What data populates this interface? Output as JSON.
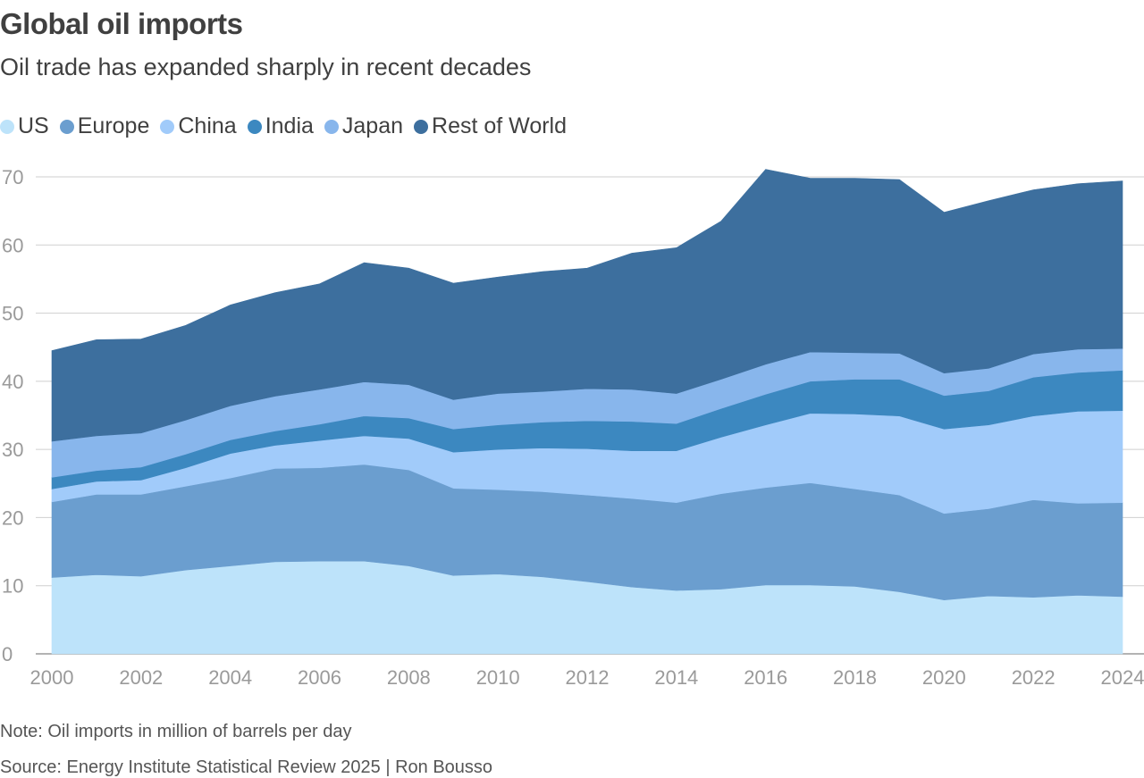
{
  "header": {
    "title": "Global oil imports",
    "subtitle": "Oil trade has expanded sharply in recent decades"
  },
  "footer": {
    "note": "Note: Oil imports in million of barrels per day",
    "source": "Source: Energy Institute Statistical Review 2025 | Ron Bousso"
  },
  "chart_data": {
    "type": "area",
    "stacked": true,
    "title": "Global oil imports",
    "subtitle": "Oil trade has expanded sharply in recent decades",
    "xlabel": "",
    "ylabel": "",
    "x": [
      2000,
      2001,
      2002,
      2003,
      2004,
      2005,
      2006,
      2007,
      2008,
      2009,
      2010,
      2011,
      2012,
      2013,
      2014,
      2015,
      2016,
      2017,
      2018,
      2019,
      2020,
      2021,
      2022,
      2023,
      2024
    ],
    "xticks": [
      "2000",
      "2002",
      "2004",
      "2006",
      "2008",
      "2010",
      "2012",
      "2014",
      "2016",
      "2018",
      "2020",
      "2022",
      "2024"
    ],
    "yticks": [
      "0",
      "10",
      "20",
      "30",
      "40",
      "50",
      "60",
      "70"
    ],
    "ylim": [
      0,
      70
    ],
    "grid": true,
    "legend_position": "top-left",
    "series": [
      {
        "name": "US",
        "color": "#bde3fa",
        "values": [
          11.2,
          11.6,
          11.4,
          12.3,
          12.9,
          13.5,
          13.6,
          13.6,
          12.9,
          11.5,
          11.7,
          11.3,
          10.6,
          9.8,
          9.3,
          9.5,
          10.1,
          10.1,
          9.9,
          9.1,
          7.9,
          8.5,
          8.3,
          8.6,
          8.4
        ]
      },
      {
        "name": "Europe",
        "color": "#6b9ecf",
        "values": [
          11.1,
          11.8,
          12.0,
          12.3,
          12.9,
          13.7,
          13.7,
          14.2,
          14.1,
          12.8,
          12.4,
          12.5,
          12.7,
          13.0,
          12.9,
          14.0,
          14.3,
          15.0,
          14.3,
          14.2,
          12.7,
          12.8,
          14.3,
          13.5,
          13.8
        ]
      },
      {
        "name": "China",
        "color": "#a1cbfa",
        "values": [
          1.9,
          1.9,
          2.1,
          2.7,
          3.6,
          3.4,
          4.0,
          4.2,
          4.6,
          5.3,
          5.9,
          6.4,
          6.8,
          7.0,
          7.6,
          8.3,
          9.2,
          10.2,
          11.0,
          11.6,
          12.4,
          12.3,
          12.3,
          13.5,
          13.5
        ]
      },
      {
        "name": "India",
        "color": "#3c88c0",
        "values": [
          1.7,
          1.6,
          1.9,
          2.0,
          2.0,
          2.1,
          2.4,
          2.9,
          3.0,
          3.4,
          3.6,
          3.8,
          4.1,
          4.3,
          4.0,
          4.2,
          4.5,
          4.7,
          5.1,
          5.4,
          4.9,
          5.0,
          5.7,
          5.7,
          5.9
        ]
      },
      {
        "name": "Japan",
        "color": "#88b6ec",
        "values": [
          5.3,
          5.1,
          5.0,
          5.0,
          5.0,
          5.1,
          5.1,
          5.0,
          4.9,
          4.3,
          4.6,
          4.5,
          4.7,
          4.7,
          4.4,
          4.3,
          4.4,
          4.3,
          3.9,
          3.8,
          3.3,
          3.3,
          3.4,
          3.4,
          3.2
        ]
      },
      {
        "name": "Rest of World",
        "color": "#3d6f9e",
        "values": [
          13.3,
          14.1,
          13.8,
          13.9,
          14.8,
          15.2,
          15.5,
          17.5,
          17.1,
          17.1,
          17.1,
          17.6,
          17.7,
          20.0,
          21.4,
          23.2,
          28.6,
          25.5,
          25.6,
          25.5,
          23.6,
          24.6,
          24.1,
          24.3,
          24.6
        ]
      }
    ]
  }
}
